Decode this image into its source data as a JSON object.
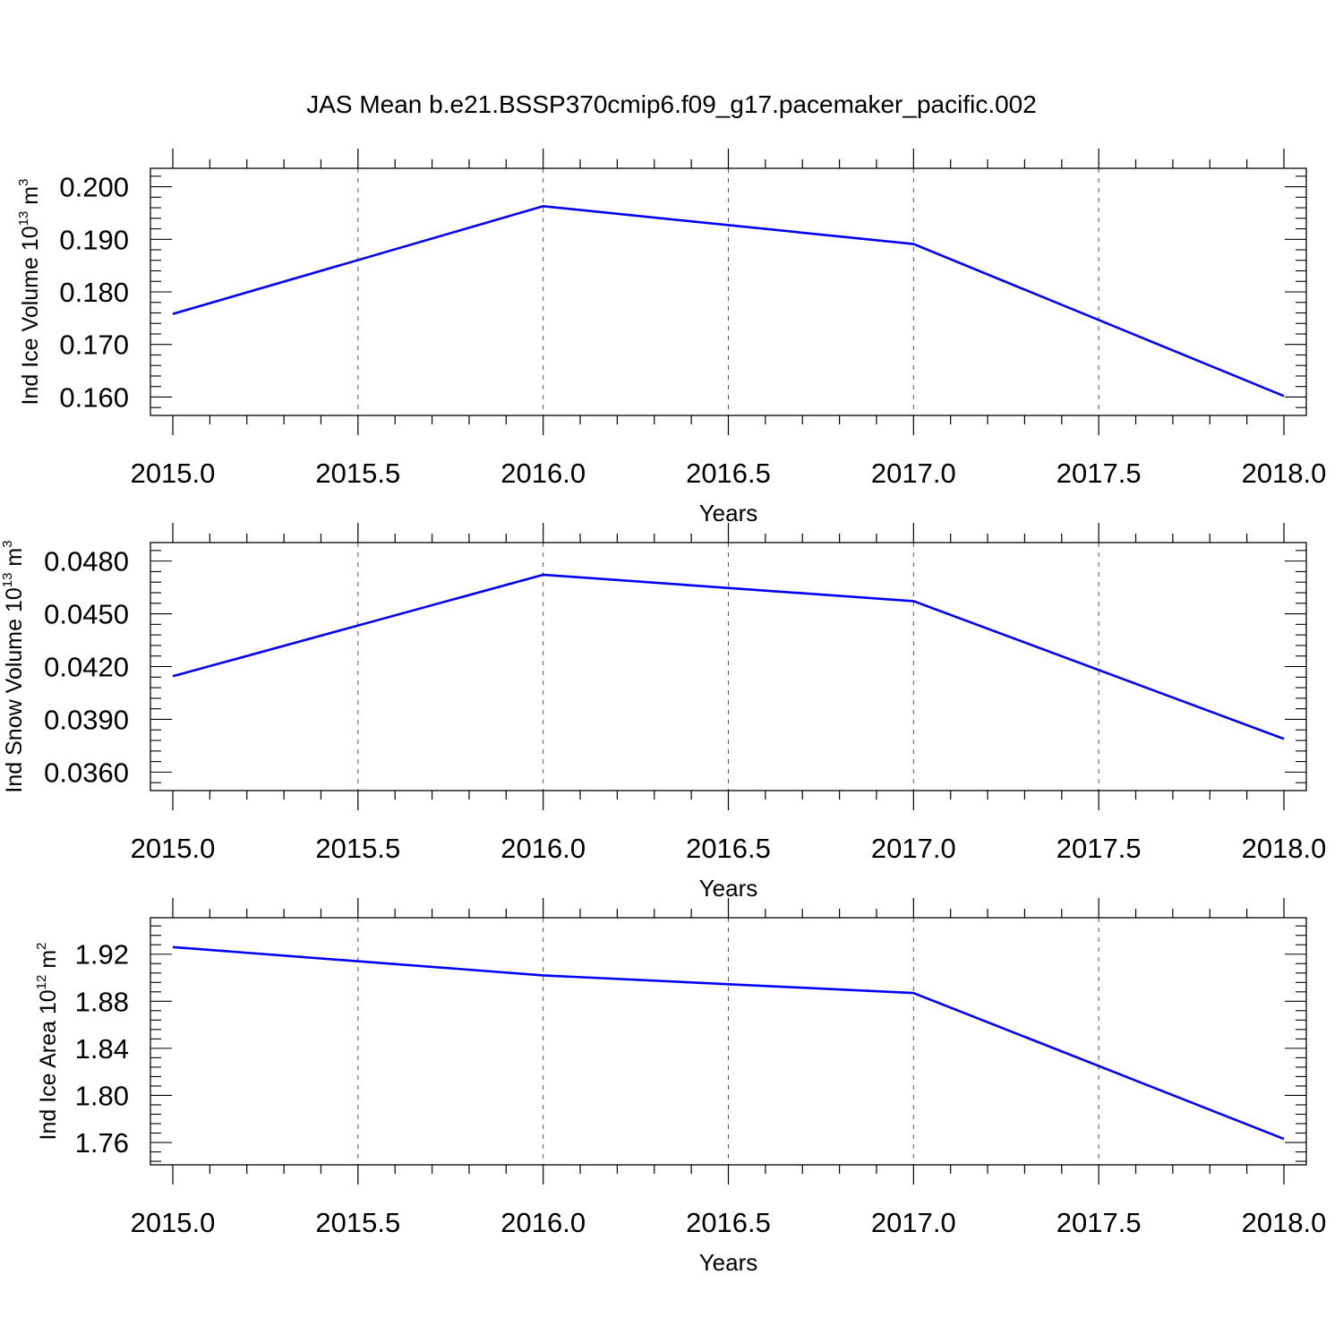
{
  "figure": {
    "title": "JAS Mean b.e21.BSSP370cmip6.f09_g17.pacemaker_pacific.002"
  },
  "chart_data": [
    {
      "type": "line",
      "title": "",
      "xlabel": "Years",
      "ylabel": {
        "base": "Ind Ice Volume 10",
        "exp": "13",
        "unit": " m",
        "unit_exp": "3"
      },
      "x": [
        2015,
        2016,
        2017,
        2018
      ],
      "series": [
        {
          "values": [
            0.1758,
            0.1963,
            0.1891,
            0.1602
          ],
          "color": "#0000ff"
        }
      ],
      "xlim": [
        2015,
        2018
      ],
      "ylim": [
        0.1565,
        0.2035
      ],
      "x_ticks": [
        "2015.0",
        "2015.5",
        "2016.0",
        "2016.5",
        "2017.0",
        "2017.5",
        "2018.0"
      ],
      "y_ticks": [
        "0.160",
        "0.170",
        "0.180",
        "0.190",
        "0.200"
      ],
      "grid": "vertical dashed at x major ticks"
    },
    {
      "type": "line",
      "title": "",
      "xlabel": "Years",
      "ylabel": {
        "base": "Ind Snow Volume 10",
        "exp": "13",
        "unit": " m",
        "unit_exp": "3"
      },
      "x": [
        2015,
        2016,
        2017,
        2018
      ],
      "series": [
        {
          "values": [
            0.04145,
            0.04722,
            0.04572,
            0.03789
          ],
          "color": "#0000ff"
        }
      ],
      "xlim": [
        2015,
        2018
      ],
      "ylim": [
        0.03495,
        0.04905
      ],
      "x_ticks": [
        "2015.0",
        "2015.5",
        "2016.0",
        "2016.5",
        "2017.0",
        "2017.5",
        "2018.0"
      ],
      "y_ticks": [
        "0.0360",
        "0.0390",
        "0.0420",
        "0.0450",
        "0.0480"
      ],
      "grid": "vertical dashed at x major ticks"
    },
    {
      "type": "line",
      "title": "",
      "xlabel": "Years",
      "ylabel": {
        "base": "Ind Ice Area 10",
        "exp": "12",
        "unit": " m",
        "unit_exp": "2"
      },
      "x": [
        2015,
        2016,
        2017,
        2018
      ],
      "series": [
        {
          "values": [
            1.926,
            1.902,
            1.887,
            1.763
          ],
          "color": "#0000ff"
        }
      ],
      "xlim": [
        2015,
        2018
      ],
      "ylim": [
        1.741,
        1.951
      ],
      "x_ticks": [
        "2015.0",
        "2015.5",
        "2016.0",
        "2016.5",
        "2017.0",
        "2017.5",
        "2018.0"
      ],
      "y_ticks": [
        "1.76",
        "1.80",
        "1.84",
        "1.88",
        "1.92"
      ],
      "grid": "vertical dashed at x major ticks"
    }
  ]
}
